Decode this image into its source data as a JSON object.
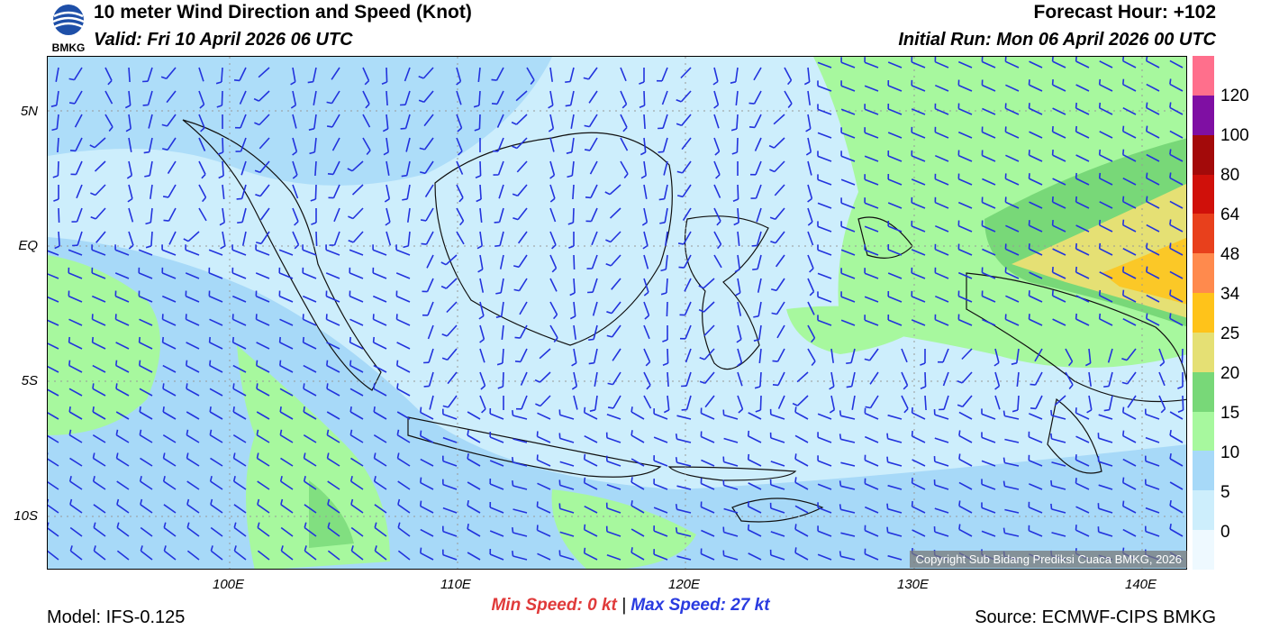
{
  "header": {
    "title": "10 meter Wind Direction and Speed (Knot)",
    "valid": "Valid: Fri 10 April 2026 06 UTC",
    "forecast_hour": "Forecast Hour: +102",
    "initial_run": "Initial Run: Mon 06 April 2026 00 UTC"
  },
  "logo": {
    "text": "BMKG",
    "colors": {
      "blue": "#1e4fa8",
      "white": "#ffffff"
    }
  },
  "axes": {
    "lat_labels": [
      "5N",
      "EQ",
      "5S",
      "10S"
    ],
    "lon_labels": [
      "100E",
      "110E",
      "120E",
      "130E",
      "140E"
    ]
  },
  "colorbar": {
    "labels": [
      "120",
      "100",
      "80",
      "64",
      "48",
      "34",
      "25",
      "20",
      "15",
      "10",
      "5",
      "0"
    ],
    "colors_top_to_bottom": [
      "#ff6f8c",
      "#7f0fa3",
      "#a30a0a",
      "#d0100a",
      "#e8401c",
      "#ff8a4d",
      "#ffc31a",
      "#e5e074",
      "#78d878",
      "#a7f89e",
      "#a7d9f8",
      "#cdeefc",
      "#eef9ff"
    ]
  },
  "footer": {
    "min_label": "Min Speed:",
    "min_value": "0 kt",
    "separator": "|",
    "max_label": "Max Speed:",
    "max_value": "27 kt",
    "model": "Model: IFS-0.125",
    "source": "Source: ECMWF-CIPS BMKG",
    "copyright": "Copyright Sub Bidang Prediksi Cuaca BMKG, 2026"
  },
  "map": {
    "barb_color": "#2233dd",
    "grid_color": "#999999"
  }
}
